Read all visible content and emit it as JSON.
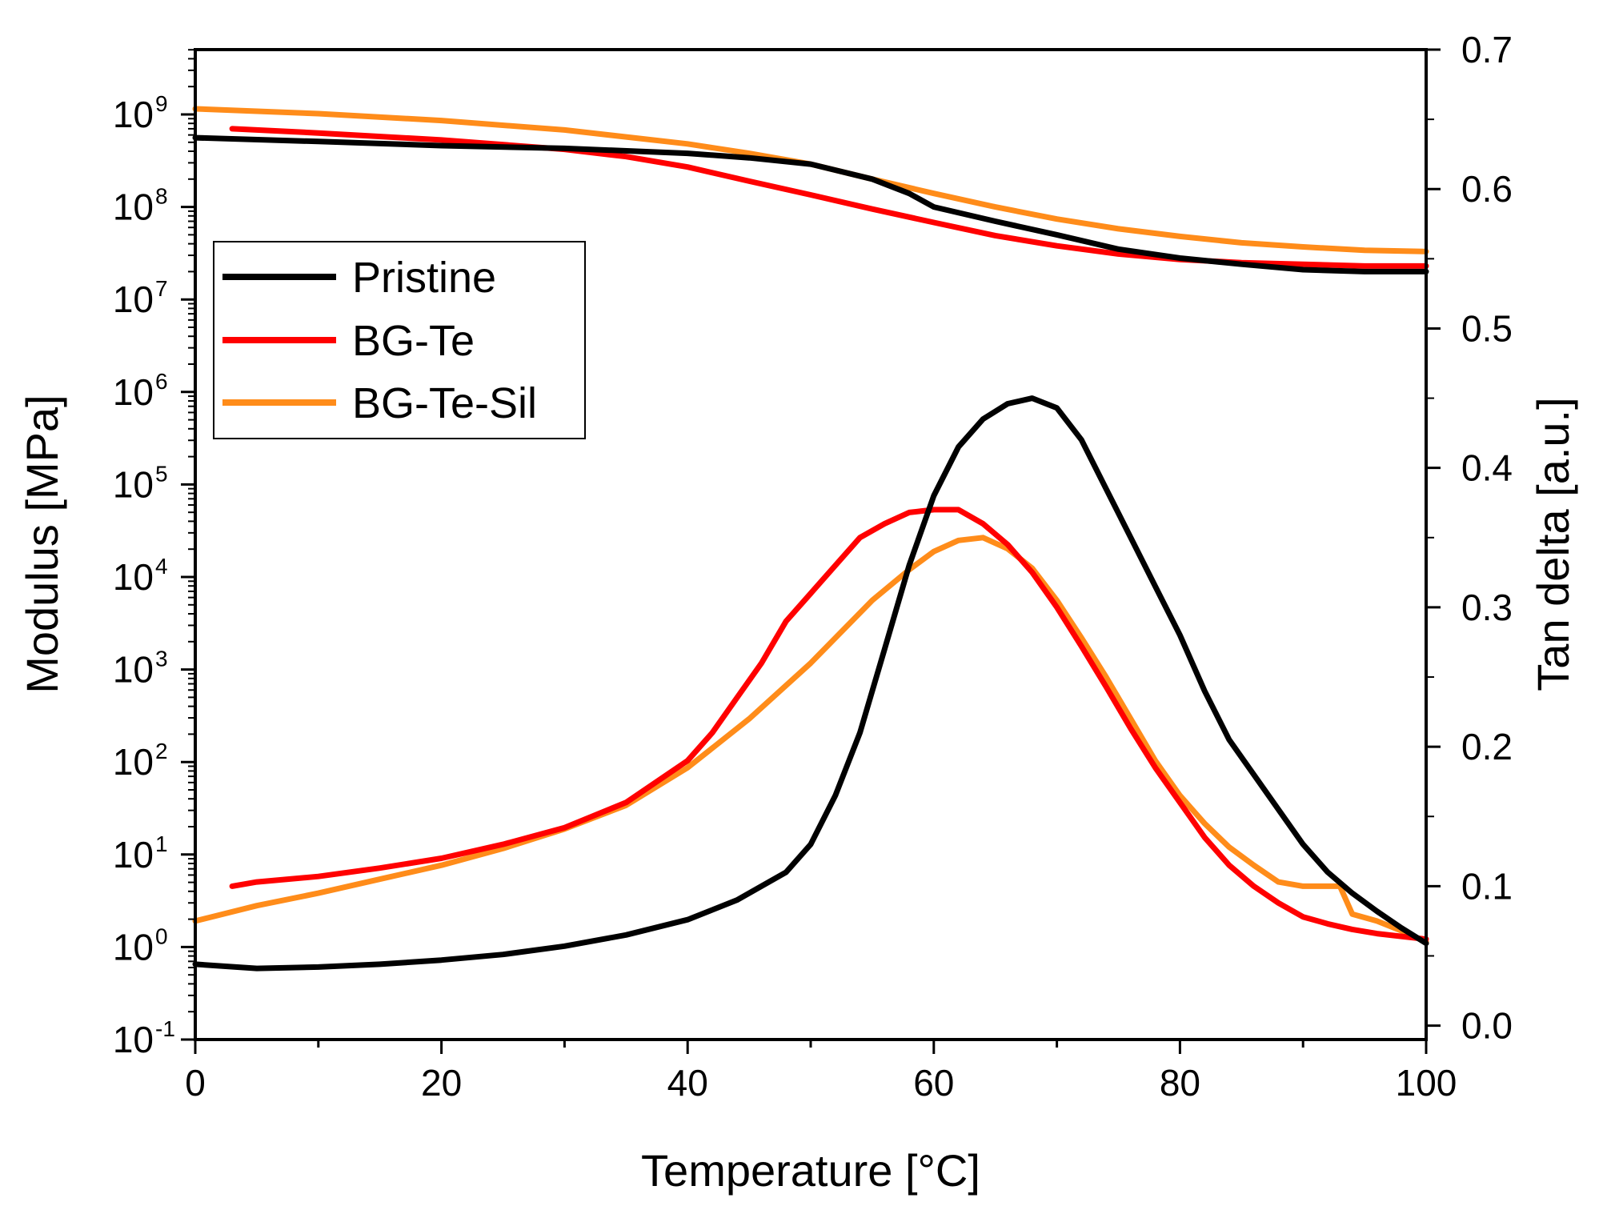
{
  "chart_data": {
    "type": "line",
    "xlabel": "Temperature [°C]",
    "ylabel_left": "Modulus [MPa]",
    "ylabel_right": "Tan delta [a.u.]",
    "xlim": [
      0,
      100
    ],
    "ylim_left": [
      -1,
      10
    ],
    "ylim_left_note": "log10 scale",
    "ylim_right": [
      -0.01,
      0.7
    ],
    "x_ticks": [
      "0",
      "20",
      "40",
      "60",
      "80",
      "100"
    ],
    "y_left_ticks": [
      {
        "base": "10",
        "exp": "-1",
        "value": -1
      },
      {
        "base": "10",
        "exp": "0",
        "value": 0
      },
      {
        "base": "10",
        "exp": "1",
        "value": 1
      },
      {
        "base": "10",
        "exp": "2",
        "value": 2
      },
      {
        "base": "10",
        "exp": "3",
        "value": 3
      },
      {
        "base": "10",
        "exp": "4",
        "value": 4
      },
      {
        "base": "10",
        "exp": "5",
        "value": 5
      },
      {
        "base": "10",
        "exp": "6",
        "value": 6
      },
      {
        "base": "10",
        "exp": "7",
        "value": 7
      },
      {
        "base": "10",
        "exp": "8",
        "value": 8
      },
      {
        "base": "10",
        "exp": "9",
        "value": 9
      }
    ],
    "y_right_ticks": [
      "0.0",
      "0.1",
      "0.2",
      "0.3",
      "0.4",
      "0.5",
      "0.6",
      "0.7"
    ],
    "legend": {
      "position": "upper-left",
      "entries": [
        "Pristine",
        "BG-Te",
        "BG-Te-Sil"
      ]
    },
    "grid": false,
    "colors": {
      "Pristine": "#000000",
      "BG-Te": "#ff0000",
      "BG-Te-Sil": "#ff8c1a"
    },
    "series": [
      {
        "name": "Pristine",
        "axis": "left",
        "quantity": "modulus",
        "x": [
          0,
          10,
          20,
          30,
          40,
          45,
          50,
          55,
          58,
          60,
          65,
          70,
          75,
          80,
          85,
          90,
          95,
          100
        ],
        "y": [
          560000000.0,
          510000000.0,
          460000000.0,
          430000000.0,
          380000000.0,
          340000000.0,
          290000000.0,
          200000000.0,
          140000000.0,
          100000000.0,
          70000000.0,
          50000000.0,
          35000000.0,
          28000000.0,
          24000000.0,
          21000000.0,
          20000000.0,
          20000000.0
        ]
      },
      {
        "name": "BG-Te",
        "axis": "left",
        "quantity": "modulus",
        "x": [
          3,
          10,
          20,
          30,
          35,
          40,
          45,
          50,
          55,
          60,
          65,
          70,
          75,
          80,
          85,
          90,
          95,
          100
        ],
        "y": [
          700000000.0,
          630000000.0,
          530000000.0,
          420000000.0,
          350000000.0,
          270000000.0,
          190000000.0,
          135000000.0,
          95000000.0,
          68000000.0,
          49000000.0,
          38000000.0,
          31000000.0,
          27000000.0,
          25000000.0,
          24000000.0,
          23000000.0,
          23000000.0
        ]
      },
      {
        "name": "BG-Te-Sil",
        "axis": "left",
        "quantity": "modulus",
        "x": [
          0,
          10,
          20,
          30,
          40,
          45,
          50,
          55,
          60,
          65,
          70,
          75,
          80,
          85,
          90,
          95,
          100
        ],
        "y": [
          1150000000.0,
          1020000000.0,
          860000000.0,
          680000000.0,
          480000000.0,
          380000000.0,
          290000000.0,
          200000000.0,
          140000000.0,
          100000000.0,
          74000000.0,
          58000000.0,
          48000000.0,
          41000000.0,
          37000000.0,
          34000000.0,
          33000000.0
        ]
      },
      {
        "name": "Pristine",
        "axis": "right",
        "quantity": "tan delta",
        "x": [
          0,
          5,
          10,
          15,
          20,
          25,
          30,
          35,
          40,
          44,
          48,
          50,
          52,
          54,
          56,
          58,
          60,
          62,
          64,
          66,
          68,
          70,
          72,
          74,
          76,
          78,
          80,
          82,
          84,
          86,
          88,
          90,
          92,
          94,
          96,
          98,
          100
        ],
        "y": [
          0.044,
          0.041,
          0.042,
          0.044,
          0.047,
          0.051,
          0.057,
          0.065,
          0.076,
          0.09,
          0.11,
          0.13,
          0.165,
          0.21,
          0.27,
          0.33,
          0.38,
          0.415,
          0.435,
          0.446,
          0.45,
          0.443,
          0.42,
          0.385,
          0.35,
          0.315,
          0.28,
          0.24,
          0.205,
          0.18,
          0.155,
          0.13,
          0.11,
          0.095,
          0.082,
          0.07,
          0.059
        ]
      },
      {
        "name": "BG-Te",
        "axis": "right",
        "quantity": "tan delta",
        "x": [
          3,
          5,
          10,
          15,
          20,
          25,
          30,
          35,
          40,
          42,
          44,
          46,
          48,
          50,
          52,
          54,
          56,
          58,
          60,
          62,
          64,
          66,
          68,
          70,
          72,
          74,
          76,
          78,
          80,
          82,
          84,
          86,
          88,
          90,
          92,
          94,
          96,
          98,
          100
        ],
        "y": [
          0.1,
          0.103,
          0.107,
          0.113,
          0.12,
          0.13,
          0.142,
          0.16,
          0.19,
          0.21,
          0.235,
          0.26,
          0.29,
          0.31,
          0.33,
          0.35,
          0.36,
          0.368,
          0.37,
          0.37,
          0.36,
          0.345,
          0.325,
          0.3,
          0.272,
          0.243,
          0.213,
          0.185,
          0.16,
          0.135,
          0.115,
          0.1,
          0.088,
          0.078,
          0.073,
          0.069,
          0.066,
          0.064,
          0.062
        ]
      },
      {
        "name": "BG-Te-Sil",
        "axis": "right",
        "quantity": "tan delta",
        "x": [
          0,
          5,
          10,
          15,
          20,
          25,
          30,
          35,
          40,
          45,
          50,
          55,
          58,
          60,
          62,
          64,
          66,
          68,
          70,
          72,
          74,
          76,
          78,
          80,
          82,
          84,
          86,
          88,
          90,
          92,
          93,
          94,
          96,
          98,
          100
        ],
        "y": [
          0.075,
          0.086,
          0.095,
          0.105,
          0.115,
          0.127,
          0.141,
          0.158,
          0.185,
          0.22,
          0.26,
          0.305,
          0.327,
          0.34,
          0.348,
          0.35,
          0.342,
          0.328,
          0.305,
          0.278,
          0.25,
          0.22,
          0.19,
          0.165,
          0.145,
          0.128,
          0.115,
          0.103,
          0.1,
          0.1,
          0.1,
          0.08,
          0.075,
          0.068,
          0.06
        ]
      }
    ]
  }
}
